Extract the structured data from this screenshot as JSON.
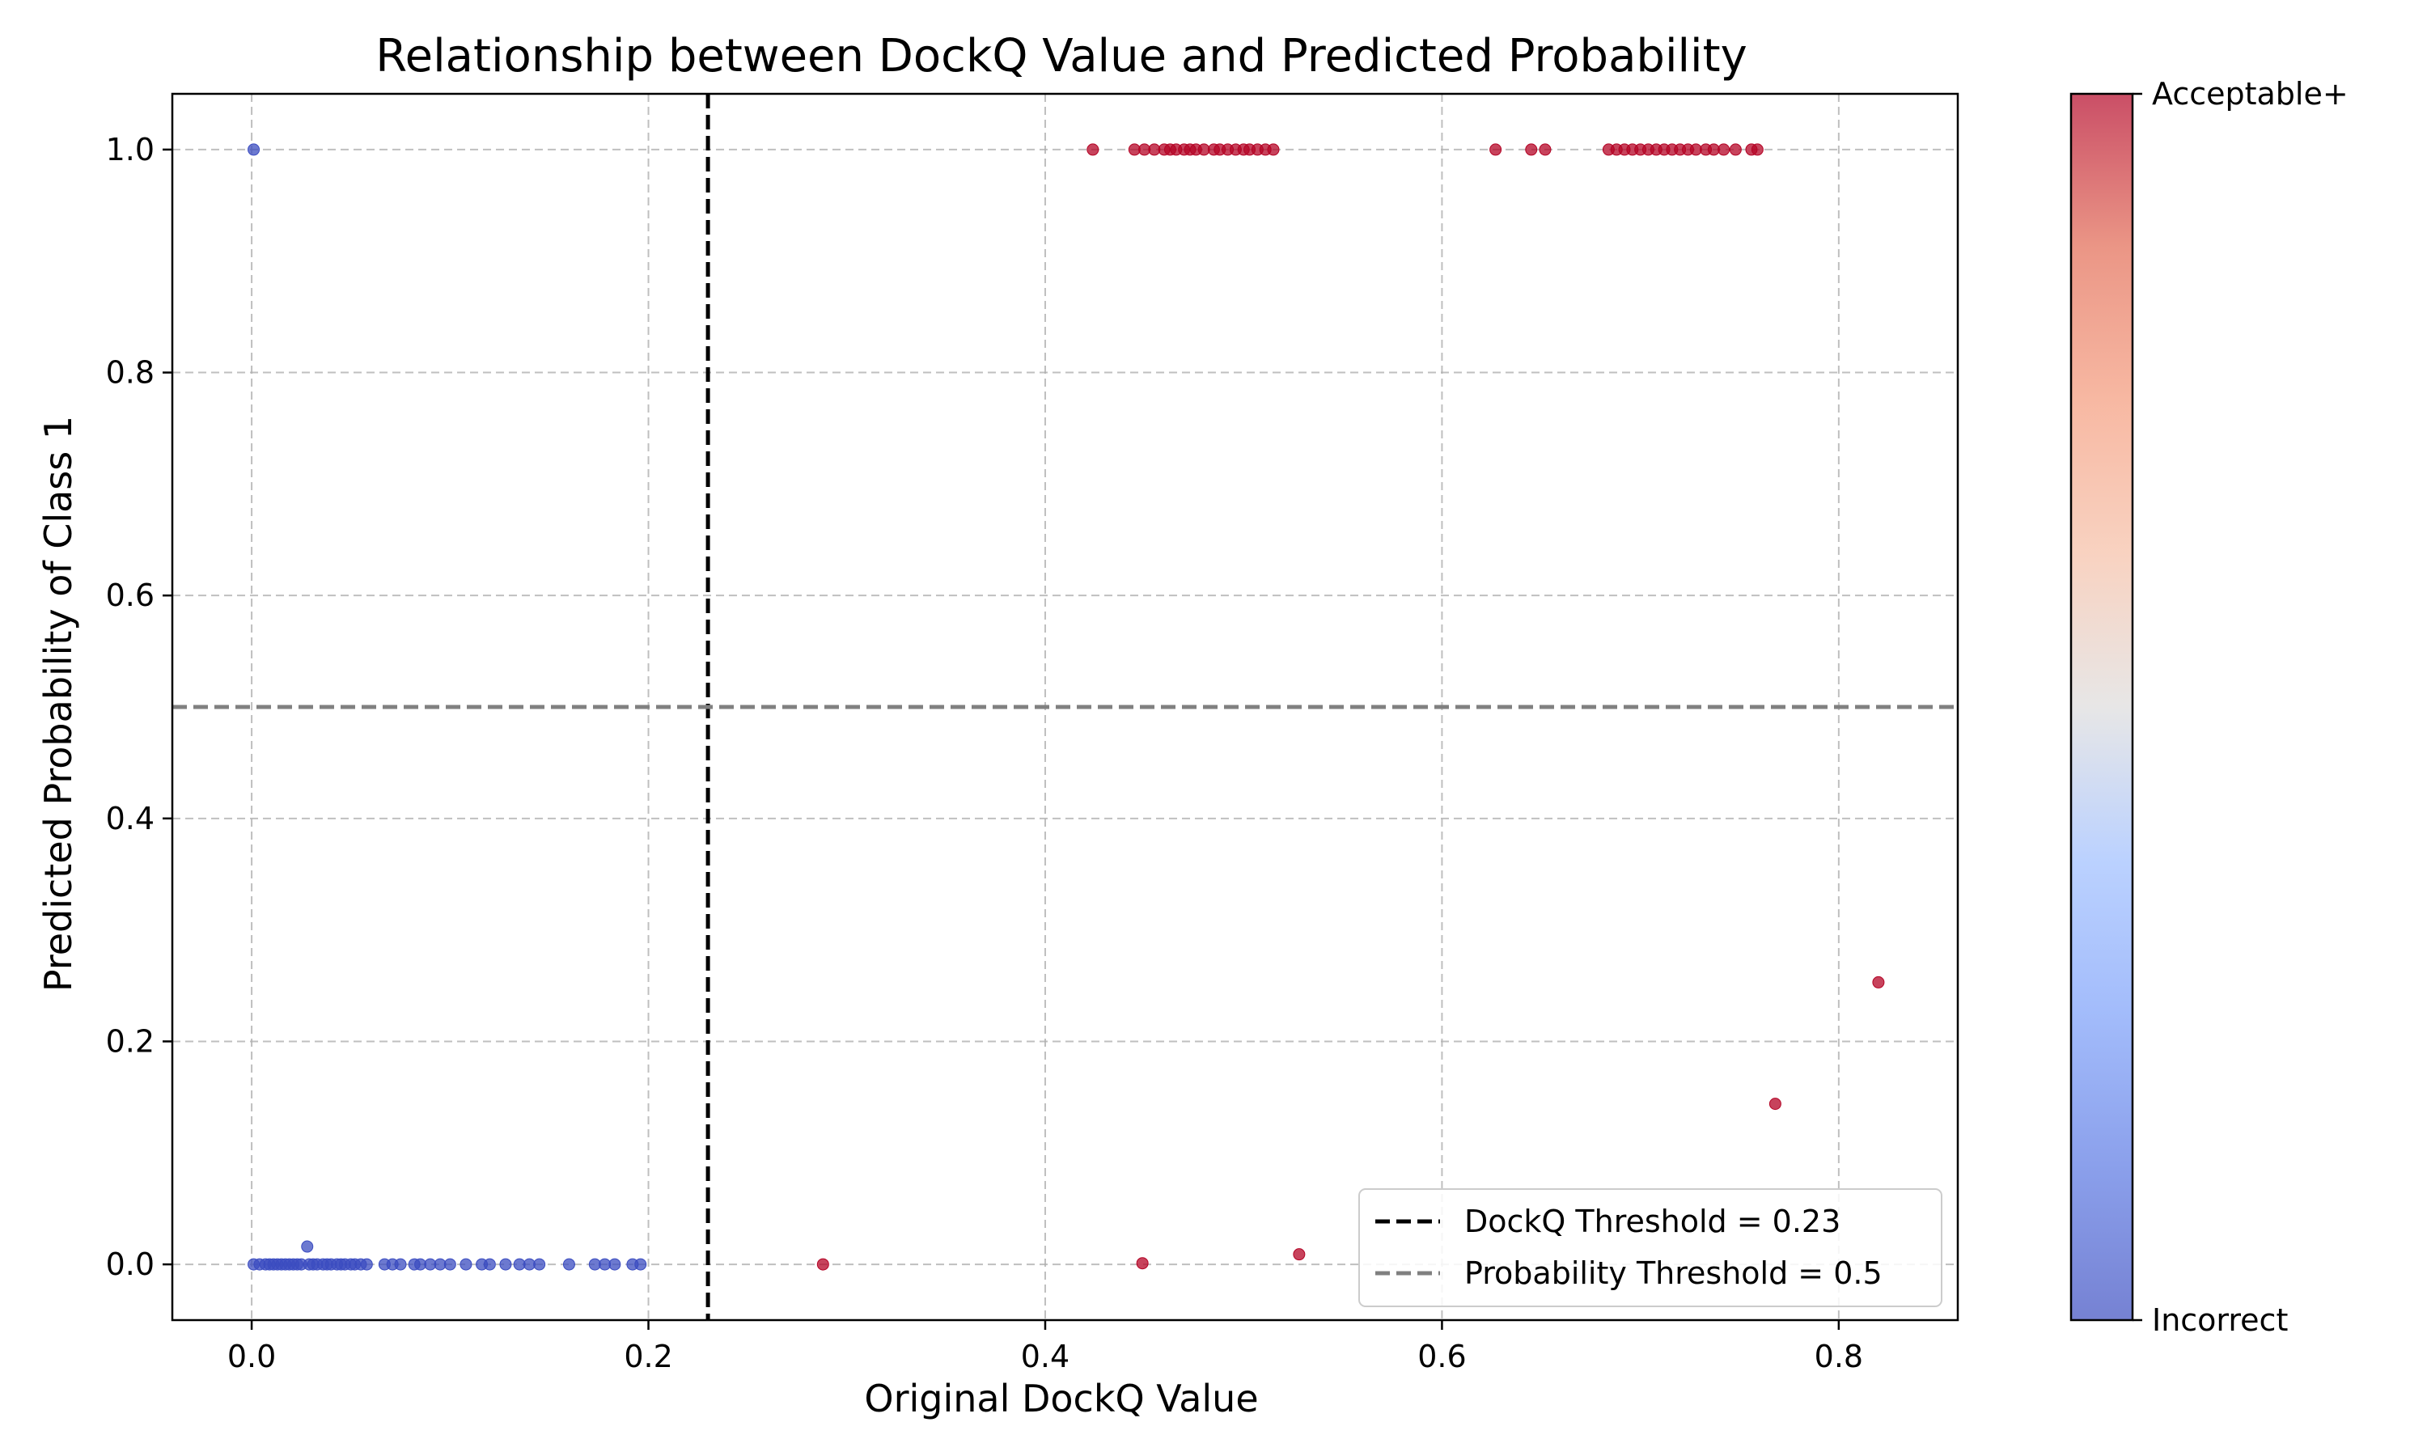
{
  "chart_data": {
    "type": "scatter",
    "title": "Relationship between DockQ Value and Predicted Probability",
    "xlabel": "Original DockQ Value",
    "ylabel": "Predicted Probability of Class 1",
    "xlim": [
      -0.04,
      0.86
    ],
    "ylim": [
      -0.05,
      1.05
    ],
    "xticks": [
      0.0,
      0.2,
      0.4,
      0.6,
      0.8
    ],
    "xtick_labels": [
      "0.0",
      "0.2",
      "0.4",
      "0.6",
      "0.8"
    ],
    "yticks": [
      0.0,
      0.2,
      0.4,
      0.6,
      0.8,
      1.0
    ],
    "ytick_labels": [
      "0.0",
      "0.2",
      "0.4",
      "0.6",
      "0.8",
      "1.0"
    ],
    "grid": true,
    "dockq_threshold": 0.23,
    "probability_threshold": 0.5,
    "legend": {
      "placement": "lower-right",
      "entries": [
        {
          "label": "DockQ Threshold = 0.23",
          "color": "#000000",
          "style": "dashed"
        },
        {
          "label": "Probability Threshold = 0.5",
          "color": "#808080",
          "style": "dashed"
        }
      ]
    },
    "colorbar": {
      "colormap": "coolwarm",
      "top_label": "Acceptable+",
      "bottom_label": "Incorrect"
    },
    "colors": {
      "incorrect": "#3b4cc0",
      "acceptable": "#b40426",
      "dockq_line": "#000000",
      "prob_line": "#808080",
      "grid": "#b0b0b0"
    },
    "series": [
      {
        "class": "Incorrect",
        "points": [
          [
            0.001,
            1.0
          ],
          [
            0.001,
            0.0
          ],
          [
            0.004,
            0.0
          ],
          [
            0.007,
            0.0
          ],
          [
            0.009,
            0.0
          ],
          [
            0.011,
            0.0
          ],
          [
            0.013,
            0.0
          ],
          [
            0.015,
            0.0
          ],
          [
            0.017,
            0.0
          ],
          [
            0.019,
            0.0
          ],
          [
            0.021,
            0.0
          ],
          [
            0.023,
            0.0
          ],
          [
            0.025,
            0.0
          ],
          [
            0.028,
            0.016
          ],
          [
            0.029,
            0.0
          ],
          [
            0.031,
            0.0
          ],
          [
            0.033,
            0.0
          ],
          [
            0.036,
            0.0
          ],
          [
            0.038,
            0.0
          ],
          [
            0.04,
            0.0
          ],
          [
            0.043,
            0.0
          ],
          [
            0.045,
            0.0
          ],
          [
            0.047,
            0.0
          ],
          [
            0.05,
            0.0
          ],
          [
            0.052,
            0.0
          ],
          [
            0.055,
            0.0
          ],
          [
            0.058,
            0.0
          ],
          [
            0.067,
            0.0
          ],
          [
            0.071,
            0.0
          ],
          [
            0.075,
            0.0
          ],
          [
            0.082,
            0.0
          ],
          [
            0.085,
            0.0
          ],
          [
            0.09,
            0.0
          ],
          [
            0.095,
            0.0
          ],
          [
            0.1,
            0.0
          ],
          [
            0.108,
            0.0
          ],
          [
            0.116,
            0.0
          ],
          [
            0.12,
            0.0
          ],
          [
            0.128,
            0.0
          ],
          [
            0.135,
            0.0
          ],
          [
            0.14,
            0.0
          ],
          [
            0.145,
            0.0
          ],
          [
            0.16,
            0.0
          ],
          [
            0.173,
            0.0
          ],
          [
            0.178,
            0.0
          ],
          [
            0.183,
            0.0
          ],
          [
            0.192,
            0.0
          ],
          [
            0.196,
            0.0
          ]
        ]
      },
      {
        "class": "Acceptable+",
        "points": [
          [
            0.288,
            0.0
          ],
          [
            0.449,
            0.001
          ],
          [
            0.528,
            0.009
          ],
          [
            0.768,
            0.144
          ],
          [
            0.82,
            0.253
          ],
          [
            0.424,
            1.0
          ],
          [
            0.445,
            1.0
          ],
          [
            0.45,
            1.0
          ],
          [
            0.455,
            1.0
          ],
          [
            0.46,
            1.0
          ],
          [
            0.463,
            1.0
          ],
          [
            0.466,
            1.0
          ],
          [
            0.47,
            1.0
          ],
          [
            0.473,
            1.0
          ],
          [
            0.476,
            1.0
          ],
          [
            0.48,
            1.0
          ],
          [
            0.485,
            1.0
          ],
          [
            0.488,
            1.0
          ],
          [
            0.492,
            1.0
          ],
          [
            0.496,
            1.0
          ],
          [
            0.5,
            1.0
          ],
          [
            0.503,
            1.0
          ],
          [
            0.507,
            1.0
          ],
          [
            0.511,
            1.0
          ],
          [
            0.515,
            1.0
          ],
          [
            0.627,
            1.0
          ],
          [
            0.645,
            1.0
          ],
          [
            0.652,
            1.0
          ],
          [
            0.684,
            1.0
          ],
          [
            0.688,
            1.0
          ],
          [
            0.692,
            1.0
          ],
          [
            0.696,
            1.0
          ],
          [
            0.7,
            1.0
          ],
          [
            0.704,
            1.0
          ],
          [
            0.708,
            1.0
          ],
          [
            0.712,
            1.0
          ],
          [
            0.716,
            1.0
          ],
          [
            0.72,
            1.0
          ],
          [
            0.724,
            1.0
          ],
          [
            0.728,
            1.0
          ],
          [
            0.733,
            1.0
          ],
          [
            0.737,
            1.0
          ],
          [
            0.742,
            1.0
          ],
          [
            0.748,
            1.0
          ],
          [
            0.756,
            1.0
          ],
          [
            0.759,
            1.0
          ]
        ]
      }
    ]
  }
}
